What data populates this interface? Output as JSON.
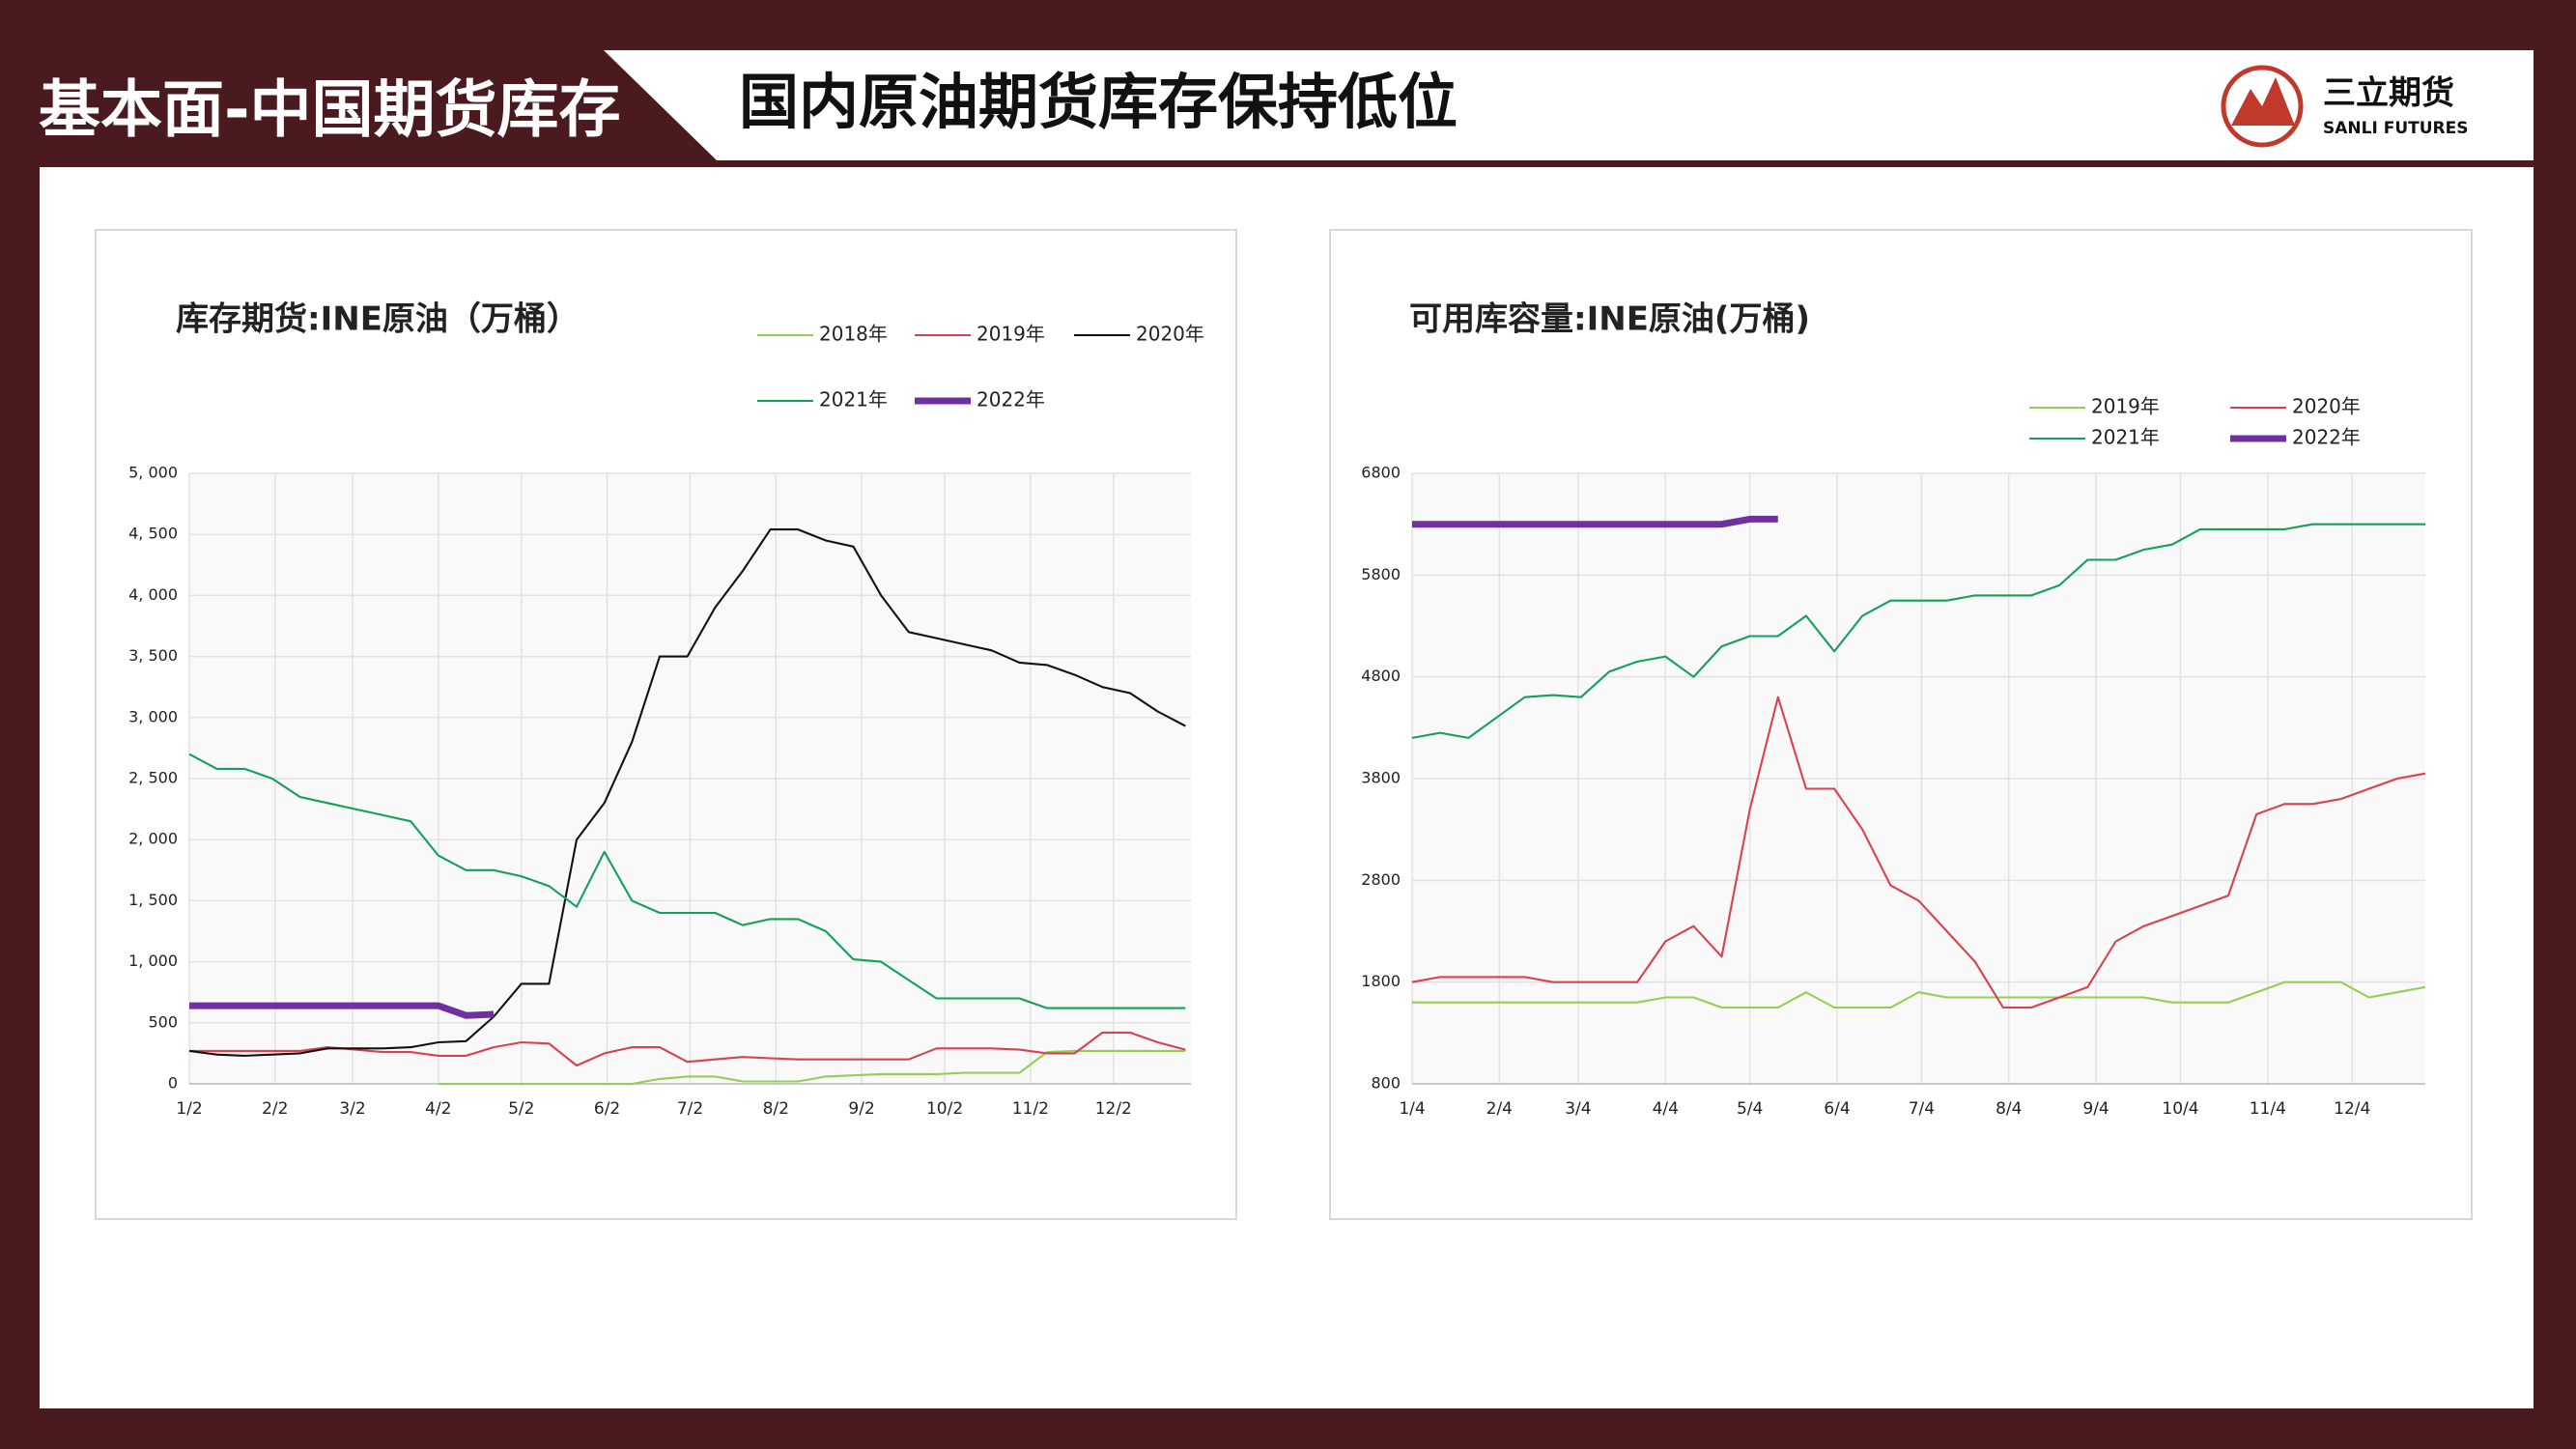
{
  "header": {
    "section": "基本面-中国期货库存",
    "title": "国内原油期货库存保持低位",
    "logo_name": "三立期货",
    "logo_sub": "SANLI FUTURES"
  },
  "chart_data": [
    {
      "type": "line",
      "title": "库存期货:INE原油（万桶）",
      "x": [
        0,
        10,
        20,
        30,
        40,
        50,
        60,
        70,
        80,
        90,
        100,
        110,
        120,
        130,
        140,
        150,
        160,
        170,
        180,
        190,
        200,
        210,
        220,
        230,
        240,
        250,
        260,
        270,
        280,
        290,
        300,
        310,
        320,
        330,
        340,
        350,
        360
      ],
      "xlim": [
        0,
        362
      ],
      "xticks": [
        {
          "value": 0,
          "label": "1/2"
        },
        {
          "value": 31,
          "label": "2/2"
        },
        {
          "value": 59,
          "label": "3/2"
        },
        {
          "value": 90,
          "label": "4/2"
        },
        {
          "value": 120,
          "label": "5/2"
        },
        {
          "value": 151,
          "label": "6/2"
        },
        {
          "value": 181,
          "label": "7/2"
        },
        {
          "value": 212,
          "label": "8/2"
        },
        {
          "value": 243,
          "label": "9/2"
        },
        {
          "value": 273,
          "label": "10/2"
        },
        {
          "value": 304,
          "label": "11/2"
        },
        {
          "value": 334,
          "label": "12/2"
        }
      ],
      "ylim": [
        0,
        5000
      ],
      "yticks": [
        0,
        500,
        {
          "value": 1000,
          "label": "1, 000"
        },
        {
          "value": 1500,
          "label": "1, 500"
        },
        {
          "value": 2000,
          "label": "2, 000"
        },
        {
          "value": 2500,
          "label": "2, 500"
        },
        {
          "value": 3000,
          "label": "3, 000"
        },
        {
          "value": 3500,
          "label": "3, 500"
        },
        {
          "value": 4000,
          "label": "4, 000"
        },
        {
          "value": 4500,
          "label": "4, 500"
        },
        {
          "value": 5000,
          "label": "5, 000"
        }
      ],
      "grid": true,
      "series": [
        {
          "name": "2018年",
          "color": "#92d050",
          "width": 1.5,
          "values": [
            null,
            null,
            null,
            null,
            null,
            null,
            null,
            null,
            null,
            0,
            0,
            0,
            0,
            0,
            0,
            0,
            0,
            40,
            60,
            60,
            20,
            20,
            20,
            60,
            70,
            80,
            80,
            80,
            90,
            90,
            90,
            260,
            270,
            270,
            270,
            270,
            270
          ]
        },
        {
          "name": "2019年",
          "color": "#d9414e",
          "width": 1.5,
          "values": [
            270,
            270,
            270,
            270,
            270,
            300,
            280,
            260,
            260,
            230,
            230,
            300,
            340,
            330,
            150,
            250,
            300,
            300,
            180,
            200,
            220,
            210,
            200,
            200,
            200,
            200,
            200,
            290,
            290,
            290,
            280,
            250,
            250,
            420,
            420,
            340,
            280
          ]
        },
        {
          "name": "2020年",
          "color": "#111111",
          "width": 1.5,
          "values": [
            270,
            240,
            230,
            240,
            250,
            290,
            290,
            290,
            300,
            340,
            350,
            550,
            820,
            820,
            2000,
            2300,
            2800,
            3500,
            3500,
            3900,
            4200,
            4540,
            4540,
            4450,
            4400,
            4000,
            3700,
            3650,
            3600,
            3550,
            3450,
            3430,
            3350,
            3250,
            3200,
            3050,
            2930
          ]
        },
        {
          "name": "2021年",
          "color": "#14a05a",
          "width": 1.5,
          "values": [
            2700,
            2580,
            2580,
            2500,
            2350,
            2300,
            2250,
            2200,
            2150,
            1870,
            1750,
            1750,
            1700,
            1620,
            1450,
            1900,
            1500,
            1400,
            1400,
            1400,
            1300,
            1350,
            1350,
            1250,
            1020,
            1000,
            850,
            700,
            700,
            700,
            700,
            620,
            620,
            620,
            620,
            620,
            620
          ]
        },
        {
          "name": "2022年",
          "color": "#7030a0",
          "width": 5,
          "values": [
            640,
            640,
            640,
            640,
            640,
            640,
            640,
            640,
            640,
            640,
            560,
            570,
            null,
            null,
            null,
            null,
            null,
            null,
            null,
            null,
            null,
            null,
            null,
            null,
            null,
            null,
            null,
            null,
            null,
            null,
            null,
            null,
            null,
            null,
            null,
            null,
            null
          ]
        }
      ]
    },
    {
      "type": "line",
      "title": "可用库容量:INE原油(万桶)",
      "x": [
        0,
        10,
        20,
        30,
        40,
        50,
        60,
        70,
        80,
        90,
        100,
        110,
        120,
        130,
        140,
        150,
        160,
        170,
        180,
        190,
        200,
        210,
        220,
        230,
        240,
        250,
        260,
        270,
        280,
        290,
        300,
        310,
        320,
        330,
        340,
        350,
        360
      ],
      "xlim": [
        0,
        360
      ],
      "xticks": [
        {
          "value": 0,
          "label": "1/4"
        },
        {
          "value": 31,
          "label": "2/4"
        },
        {
          "value": 59,
          "label": "3/4"
        },
        {
          "value": 90,
          "label": "4/4"
        },
        {
          "value": 120,
          "label": "5/4"
        },
        {
          "value": 151,
          "label": "6/4"
        },
        {
          "value": 181,
          "label": "7/4"
        },
        {
          "value": 212,
          "label": "8/4"
        },
        {
          "value": 243,
          "label": "9/4"
        },
        {
          "value": 273,
          "label": "10/4"
        },
        {
          "value": 304,
          "label": "11/4"
        },
        {
          "value": 334,
          "label": "12/4"
        }
      ],
      "ylim": [
        800,
        6800
      ],
      "yticks": [
        800,
        1800,
        2800,
        3800,
        4800,
        5800,
        6800
      ],
      "grid": true,
      "series": [
        {
          "name": "2019年",
          "color": "#92d050",
          "width": 1.5,
          "values": [
            1600,
            1600,
            1600,
            1600,
            1600,
            1600,
            1600,
            1600,
            1600,
            1650,
            1650,
            1550,
            1550,
            1550,
            1700,
            1550,
            1550,
            1550,
            1700,
            1650,
            1650,
            1650,
            1650,
            1650,
            1650,
            1650,
            1650,
            1600,
            1600,
            1600,
            1700,
            1800,
            1800,
            1800,
            1650,
            1700,
            1750
          ]
        },
        {
          "name": "2020年",
          "color": "#d9414e",
          "width": 1.5,
          "values": [
            1800,
            1850,
            1850,
            1850,
            1850,
            1800,
            1800,
            1800,
            1800,
            2200,
            2350,
            2050,
            3500,
            4600,
            3700,
            3700,
            3300,
            2750,
            2600,
            2300,
            2000,
            1550,
            1550,
            1650,
            1750,
            2200,
            2350,
            2450,
            2550,
            2650,
            3450,
            3550,
            3550,
            3600,
            3700,
            3800,
            3850
          ]
        },
        {
          "name": "2021年",
          "color": "#14a05a",
          "width": 1.5,
          "values": [
            4200,
            4250,
            4200,
            4400,
            4600,
            4620,
            4600,
            4850,
            4950,
            5000,
            4800,
            5100,
            5200,
            5200,
            5400,
            5050,
            5400,
            5550,
            5550,
            5550,
            5600,
            5600,
            5600,
            5700,
            5950,
            5950,
            6050,
            6100,
            6250,
            6250,
            6250,
            6250,
            6300,
            6300,
            6300,
            6300,
            6300
          ]
        },
        {
          "name": "2022年",
          "color": "#7030a0",
          "width": 5,
          "values": [
            6300,
            6300,
            6300,
            6300,
            6300,
            6300,
            6300,
            6300,
            6300,
            6300,
            6300,
            6300,
            6350,
            6350,
            null,
            null,
            null,
            null,
            null,
            null,
            null,
            null,
            null,
            null,
            null,
            null,
            null,
            null,
            null,
            null,
            null,
            null,
            null,
            null,
            null,
            null,
            null
          ]
        }
      ]
    }
  ]
}
